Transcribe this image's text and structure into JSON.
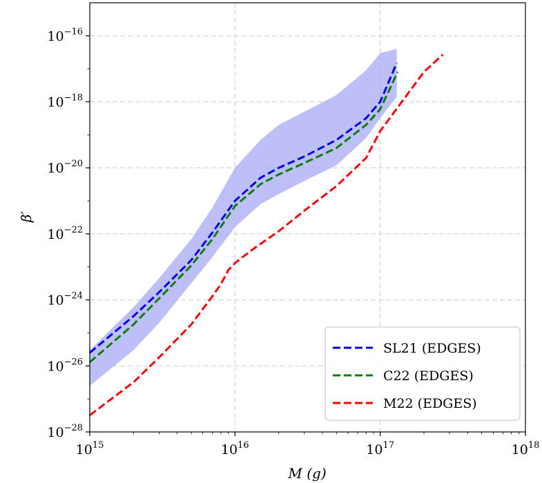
{
  "chart_data": {
    "type": "line",
    "title": "",
    "xlabel": "M (g)",
    "ylabel": "β′",
    "xscale": "log",
    "yscale": "log",
    "xlim": [
      1000000000000000.0,
      1e+18
    ],
    "ylim": [
      1e-28,
      1e-15
    ],
    "grid": true,
    "legend_position": "lower-right",
    "x_ticks": [
      {
        "base": "10",
        "exp": "15"
      },
      {
        "base": "10",
        "exp": "16"
      },
      {
        "base": "10",
        "exp": "17"
      },
      {
        "base": "10",
        "exp": "18"
      }
    ],
    "y_ticks": [
      {
        "base": "10",
        "exp": "−28",
        "value": -28
      },
      {
        "base": "10",
        "exp": "−26",
        "value": -26
      },
      {
        "base": "10",
        "exp": "−24",
        "value": -24
      },
      {
        "base": "10",
        "exp": "−22",
        "value": -22
      },
      {
        "base": "10",
        "exp": "−20",
        "value": -20
      },
      {
        "base": "10",
        "exp": "−18",
        "value": -18
      },
      {
        "base": "10",
        "exp": "−16",
        "value": -16
      }
    ],
    "band": {
      "color": "#a8a8f5",
      "x": [
        1000000000000000.0,
        2000000000000000.0,
        3000000000000000.0,
        5000000000000000.0,
        7000000000000000.0,
        1e+16,
        1.5e+16,
        2e+16,
        3e+16,
        5e+16,
        8e+16,
        1e+17,
        1.3e+17
      ],
      "upper": [
        3e-26,
        6e-25,
        4.5e-24,
        7e-23,
        6.3e-22,
        1e-20,
        7e-20,
        2e-19,
        5e-19,
        1.6e-18,
        9e-18,
        3e-17,
        4e-17
      ],
      "lower": [
        2.5e-27,
        3e-26,
        2e-25,
        3.2e-24,
        2e-23,
        1.6e-22,
        8e-22,
        1.6e-21,
        4e-21,
        1.2e-20,
        8e-20,
        3.2e-19,
        1.4e-18
      ]
    },
    "series": [
      {
        "name": "SL21 (EDGES)",
        "color": "#0000ee",
        "x": [
          1000000000000000.0,
          2000000000000000.0,
          3000000000000000.0,
          5000000000000000.0,
          7000000000000000.0,
          1e+16,
          1.5e+16,
          2e+16,
          3e+16,
          5e+16,
          8e+16,
          1e+17,
          1.3e+17
        ],
        "y": [
          2.5e-26,
          3.2e-25,
          1.7e-24,
          1.6e-23,
          1.1e-22,
          1e-21,
          5e-21,
          1e-20,
          2.2e-20,
          7e-20,
          3.2e-19,
          1e-18,
          1.5e-17
        ]
      },
      {
        "name": "C22 (EDGES)",
        "color": "#007f00",
        "x": [
          1000000000000000.0,
          2000000000000000.0,
          3000000000000000.0,
          5000000000000000.0,
          7000000000000000.0,
          1e+16,
          1.5e+16,
          2e+16,
          3e+16,
          5e+16,
          8e+16,
          1e+17,
          1.32e+17
        ],
        "y": [
          1.3e-26,
          1.8e-25,
          1.1e-24,
          1.1e-23,
          7e-23,
          7e-22,
          3.2e-21,
          6.3e-21,
          1.4e-20,
          4e-20,
          2e-19,
          6e-19,
          8e-18
        ]
      },
      {
        "name": "M22 (EDGES)",
        "color": "#ff0000",
        "x": [
          1000000000000000.0,
          2000000000000000.0,
          3000000000000000.0,
          5000000000000000.0,
          7000000000000000.0,
          8000000000000000.0,
          9000000000000000.0,
          1e+16,
          1.3e+16,
          2e+16,
          3e+16,
          5e+16,
          8e+16,
          1e+17,
          2e+17,
          2.7e+17
        ],
        "y": [
          3.2e-28,
          3.2e-27,
          1.8e-26,
          1.8e-25,
          1.3e-24,
          3e-24,
          8e-24,
          1.3e-23,
          3.2e-23,
          1.2e-22,
          5e-22,
          2.8e-21,
          2e-20,
          1.3e-19,
          8e-18,
          2.7e-17
        ]
      }
    ]
  }
}
